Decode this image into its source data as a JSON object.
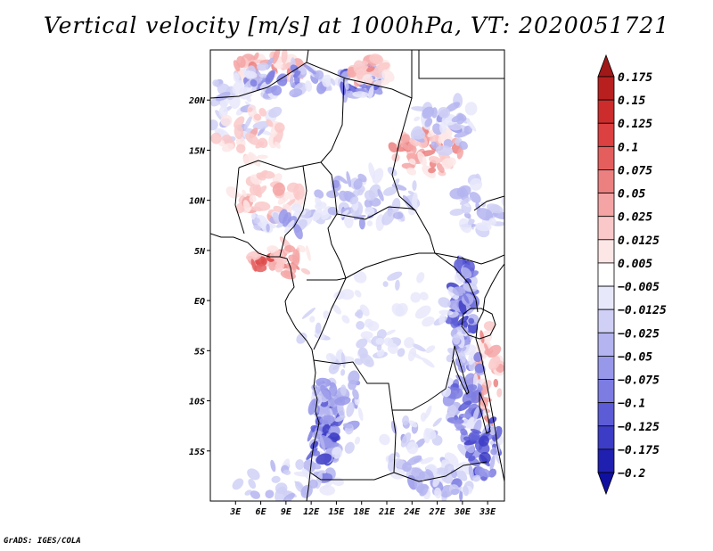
{
  "chart_data": {
    "type": "heatmap",
    "title": "Vertical velocity [m/s] at 1000hPa, VT: 2020051721",
    "variable": "Vertical velocity",
    "units": "m/s",
    "level": "1000hPa",
    "valid_time": "2020051721",
    "x_axis": {
      "label": "",
      "range": [
        0,
        35
      ],
      "ticks": [
        3,
        6,
        9,
        12,
        15,
        18,
        21,
        24,
        27,
        30,
        33
      ],
      "tick_labels": [
        "3E",
        "6E",
        "9E",
        "12E",
        "15E",
        "18E",
        "21E",
        "24E",
        "27E",
        "30E",
        "33E"
      ]
    },
    "y_axis": {
      "label": "",
      "range": [
        -20,
        25
      ],
      "ticks": [
        20,
        15,
        10,
        5,
        0,
        -5,
        -10,
        -15
      ],
      "tick_labels": [
        "20N",
        "15N",
        "10N",
        "5N",
        "EQ",
        "5S",
        "10S",
        "15S"
      ]
    },
    "colorbar": {
      "levels": [
        0.175,
        0.15,
        0.125,
        0.1,
        0.075,
        0.05,
        0.025,
        0.0125,
        0.005,
        -0.005,
        -0.0125,
        -0.025,
        -0.05,
        -0.075,
        -0.1,
        -0.125,
        -0.175,
        -0.2
      ],
      "labels": [
        "0.175",
        "0.15",
        "0.125",
        "0.1",
        "0.075",
        "0.05",
        "0.025",
        "0.0125",
        "0.005",
        "−0.005",
        "−0.0125",
        "−0.025",
        "−0.05",
        "−0.075",
        "−0.1",
        "−0.125",
        "−0.175",
        "−0.2"
      ],
      "colors": [
        "#a01818",
        "#b82020",
        "#cc2c2c",
        "#dc4040",
        "#e45e5e",
        "#ec8080",
        "#f4a4a4",
        "#fac8c8",
        "#fde6e6",
        "#ffffff",
        "#e8e8fb",
        "#d0d0f6",
        "#b4b4f0",
        "#9898ea",
        "#7c7ce2",
        "#5c5cd6",
        "#3c3cc6",
        "#2020b0",
        "#1010a0"
      ],
      "orientation": "vertical"
    },
    "field_summary": {
      "background_value_range": [
        -0.005,
        0.005
      ],
      "strong_descent_regions": [
        "East African Rift / Lake Victoria coast",
        "Southwest Angola coast",
        "Sahara north of 20N"
      ],
      "ascent_regions": [
        "Niger Delta coast",
        "Sudan east of 25E near 15N",
        "Northeast Libya/Egypt border"
      ]
    }
  },
  "footer": "GrADS: IGES/COLA"
}
